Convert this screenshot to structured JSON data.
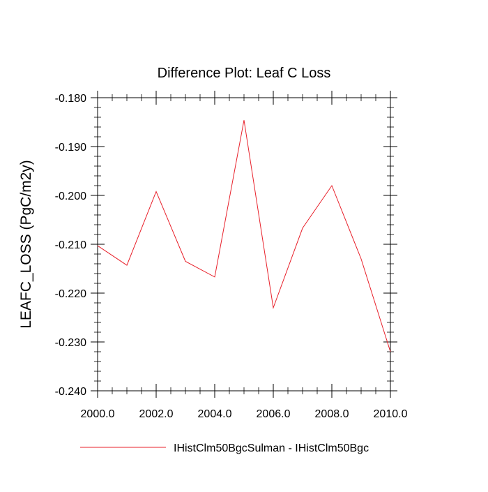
{
  "chart_data": {
    "type": "line",
    "title": "Difference Plot: Leaf C Loss",
    "xlabel": "",
    "ylabel": "LEAFC_LOSS  (PgC/m2y)",
    "xlim": [
      2000.0,
      2010.0
    ],
    "ylim": [
      -0.24,
      -0.18
    ],
    "x_ticks": [
      "2000.0",
      "2002.0",
      "2004.0",
      "2006.0",
      "2008.0",
      "2010.0"
    ],
    "x_tick_values": [
      2000,
      2002,
      2004,
      2006,
      2008,
      2010
    ],
    "y_ticks": [
      "-0.180",
      "-0.190",
      "-0.200",
      "-0.210",
      "-0.220",
      "-0.230",
      "-0.240"
    ],
    "y_tick_values": [
      -0.18,
      -0.19,
      -0.2,
      -0.21,
      -0.22,
      -0.23,
      -0.24
    ],
    "grid": false,
    "legend_position": "bottom",
    "series": [
      {
        "name": "IHistClm50BgcSulman - IHistClm50Bgc",
        "color": "#e8202a",
        "x": [
          2000,
          2001,
          2002,
          2003,
          2004,
          2005,
          2006,
          2007,
          2008,
          2009,
          2010
        ],
        "values": [
          -0.2103,
          -0.2143,
          -0.1992,
          -0.2135,
          -0.2167,
          -0.1846,
          -0.223,
          -0.2067,
          -0.198,
          -0.213,
          -0.232
        ]
      }
    ]
  }
}
